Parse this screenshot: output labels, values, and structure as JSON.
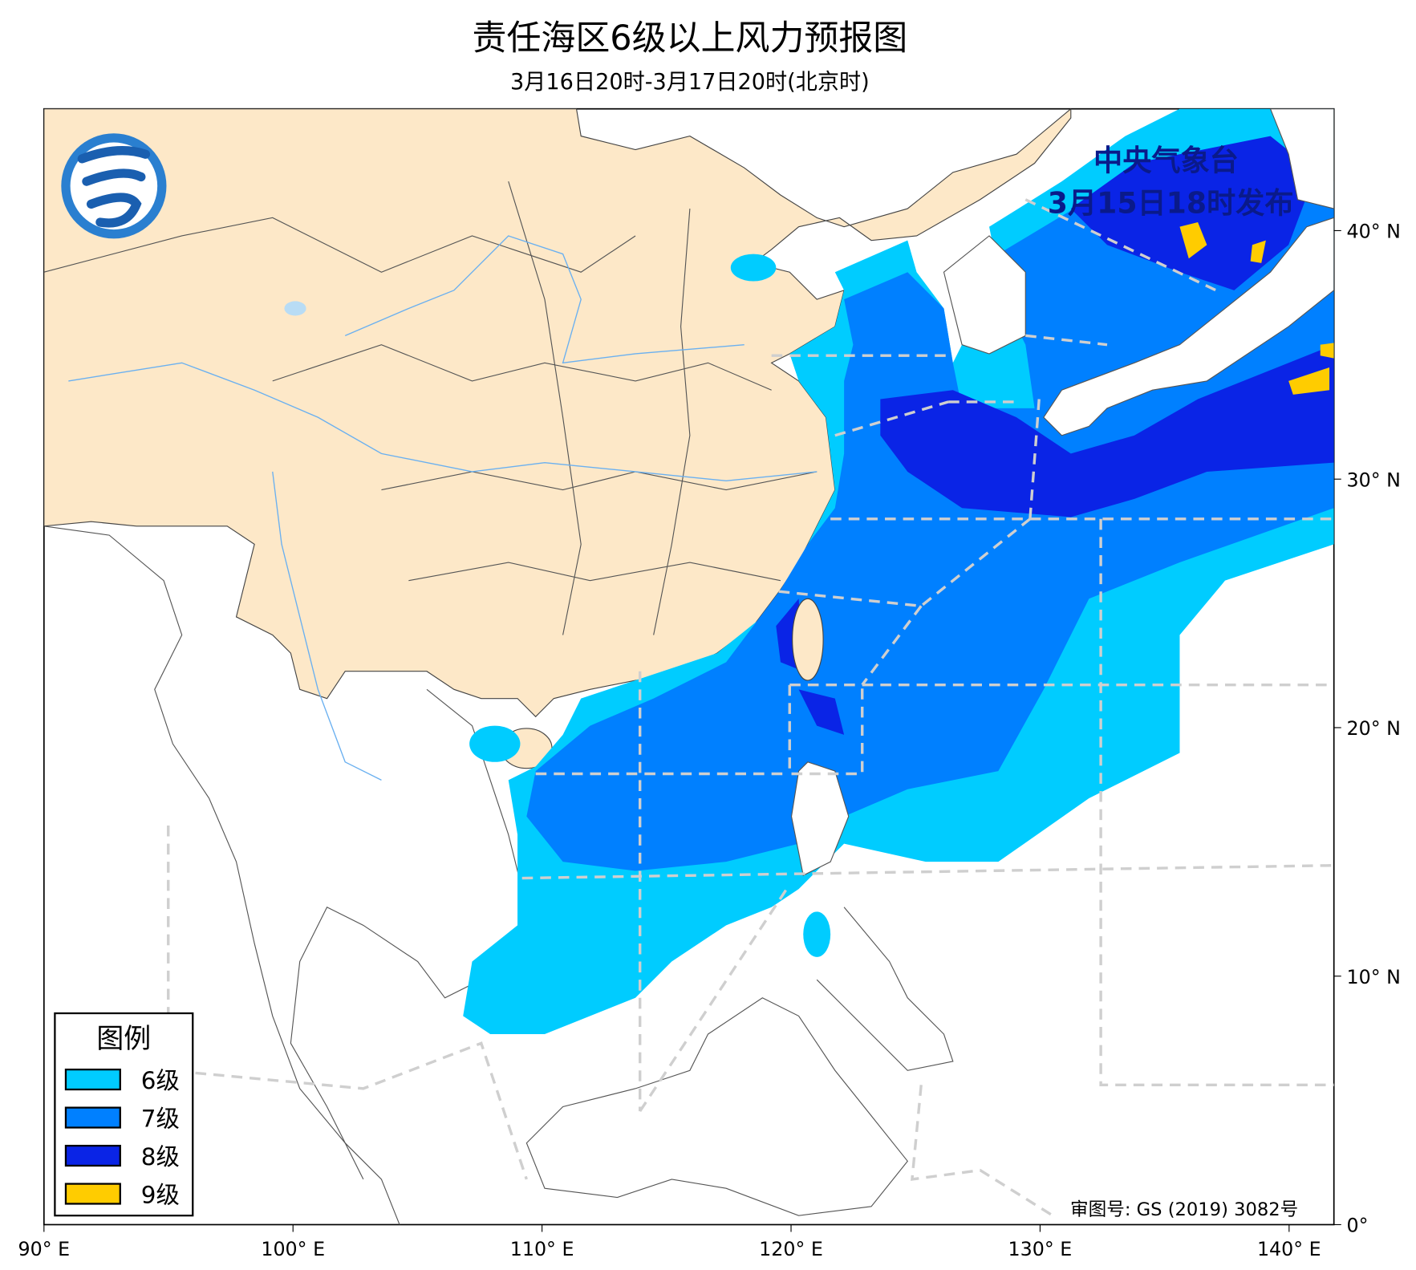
{
  "header": {
    "title": "责任海区6级以上风力预报图",
    "subtitle": "3月16日20时-3月17日20时(北京时)"
  },
  "issuer": {
    "agency": "中央气象台",
    "issued": "3月15日18时发布"
  },
  "legend": {
    "title": "图例",
    "items": [
      {
        "label": "6级",
        "color": "#00ccff"
      },
      {
        "label": "7级",
        "color": "#0080ff"
      },
      {
        "label": "8级",
        "color": "#0a24e6"
      },
      {
        "label": "9级",
        "color": "#ffcc00"
      }
    ]
  },
  "map": {
    "lon_range": [
      90,
      141.8
    ],
    "lat_range": [
      0,
      44.9
    ],
    "lon_ticks": [
      {
        "value": 90,
        "label": "90° E"
      },
      {
        "value": 100,
        "label": "100° E"
      },
      {
        "value": 110,
        "label": "110° E"
      },
      {
        "value": 120,
        "label": "120° E"
      },
      {
        "value": 130,
        "label": "130° E"
      },
      {
        "value": 140,
        "label": "140° E"
      }
    ],
    "lat_ticks": [
      {
        "value": 0,
        "label": "0°"
      },
      {
        "value": 10,
        "label": "10° N"
      },
      {
        "value": 20,
        "label": "20° N"
      },
      {
        "value": 30,
        "label": "30° N"
      },
      {
        "value": 40,
        "label": "40° N"
      }
    ]
  },
  "footer": {
    "approval": "审图号: GS (2019) 3082号"
  }
}
